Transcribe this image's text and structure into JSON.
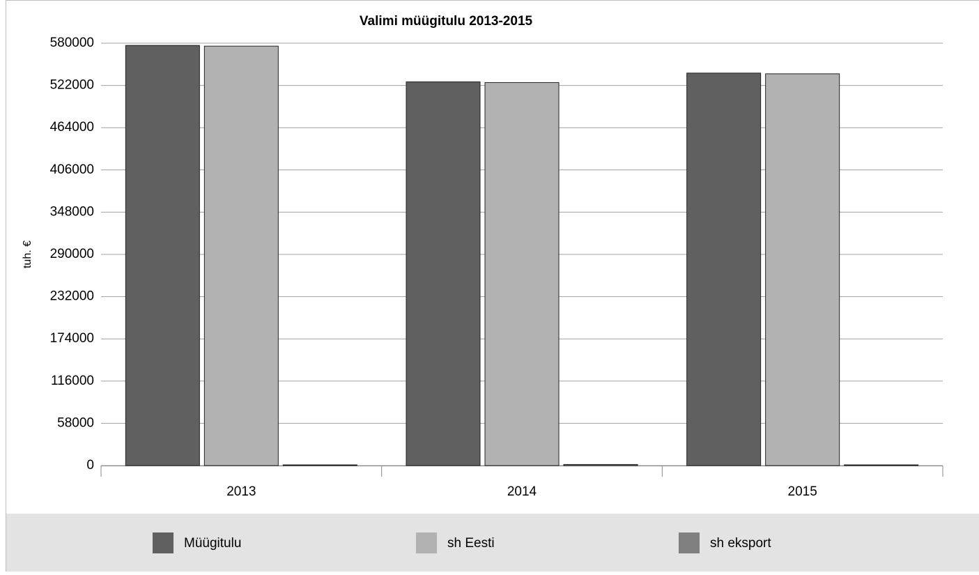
{
  "chart_data": {
    "type": "bar",
    "title": "Valimi müügitulu 2013-2015",
    "y_label": "tuh. €",
    "categories": [
      "2013",
      "2014",
      "2015"
    ],
    "series": [
      {
        "name": "Müügitulu",
        "color": "#606060",
        "values": [
          577000,
          527000,
          539000
        ]
      },
      {
        "name": "sh Eesti",
        "color": "#b2b2b2",
        "values": [
          576000,
          526000,
          538000
        ]
      },
      {
        "name": "sh eksport",
        "color": "#808080",
        "values": [
          1000,
          1500,
          1000
        ]
      }
    ],
    "ylim": [
      0,
      580000
    ],
    "yticks": [
      0,
      58000,
      116000,
      174000,
      232000,
      290000,
      348000,
      406000,
      464000,
      522000,
      580000
    ],
    "grid": true,
    "legend": "bottom"
  }
}
